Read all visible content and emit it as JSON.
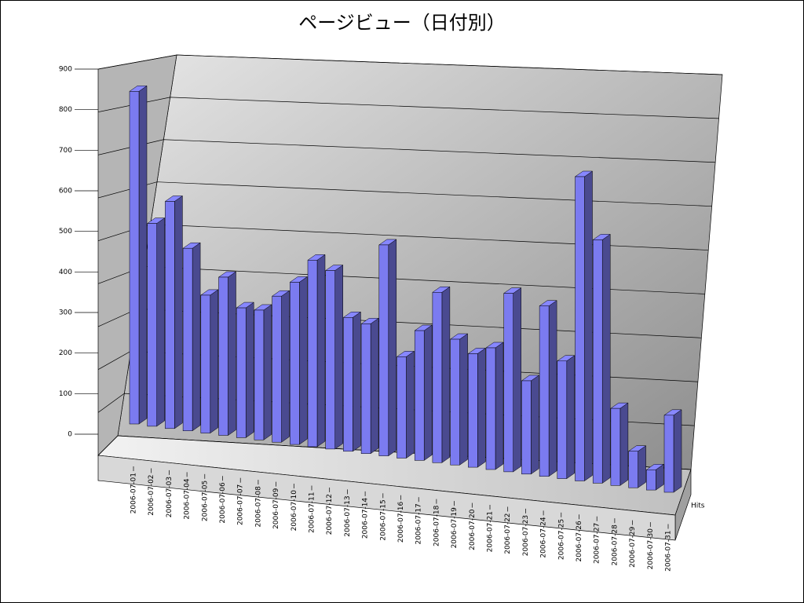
{
  "chart_data": {
    "type": "bar3d",
    "title": "ページビュー（日付別）",
    "categories": [
      "2006-07-01",
      "2006-07-02",
      "2006-07-03",
      "2006-07-04",
      "2006-07-05",
      "2006-07-06",
      "2006-07-07",
      "2006-07-08",
      "2006-07-09",
      "2006-07-10",
      "2006-07-11",
      "2006-07-12",
      "2006-07-13",
      "2006-07-14",
      "2006-07-15",
      "2006-07-16",
      "2006-07-17",
      "2006-07-18",
      "2006-07-19",
      "2006-07-20",
      "2006-07-21",
      "2006-07-22",
      "2006-07-23",
      "2006-07-24",
      "2006-07-25",
      "2006-07-26",
      "2006-07-27",
      "2006-07-28",
      "2006-07-29",
      "2006-07-30",
      "2006-07-31"
    ],
    "series": [
      {
        "name": "Hits",
        "color": "#7b7bf0",
        "values": [
          820,
          500,
          560,
          450,
          340,
          390,
          320,
          320,
          360,
          400,
          460,
          440,
          330,
          320,
          520,
          250,
          320,
          420,
          310,
          280,
          300,
          440,
          230,
          420,
          290,
          750,
          600,
          190,
          90,
          50,
          190
        ]
      }
    ],
    "ylim": [
      0,
      900
    ],
    "yticks": [
      0,
      100,
      200,
      300,
      400,
      500,
      600,
      700,
      800,
      900
    ],
    "grid": true
  }
}
